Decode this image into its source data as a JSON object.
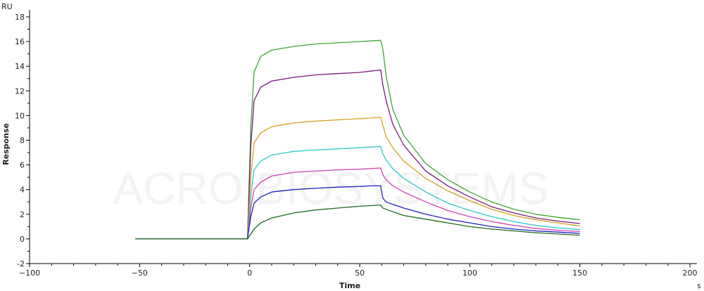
{
  "chart_data": {
    "type": "line",
    "ylabel": "Response",
    "xlabel": "Time",
    "y_unit": "RU",
    "x_unit": "s",
    "xlim": [
      -100,
      200
    ],
    "ylim": [
      -2,
      18
    ],
    "x_ticks": [
      -100,
      -50,
      0,
      50,
      100,
      150,
      200
    ],
    "y_ticks": [
      -2,
      0,
      2,
      4,
      6,
      8,
      10,
      12,
      14,
      16,
      18
    ],
    "grid": false,
    "legend": "none",
    "watermark": "ACRO BIOSYSTEMS",
    "series": [
      {
        "color": "#3aa835",
        "points": [
          [
            -52,
            0
          ],
          [
            -1,
            0
          ],
          [
            0.5,
            9
          ],
          [
            2,
            13.5
          ],
          [
            5,
            14.8
          ],
          [
            10,
            15.3
          ],
          [
            20,
            15.6
          ],
          [
            30,
            15.8
          ],
          [
            40,
            15.9
          ],
          [
            50,
            16.0
          ],
          [
            55,
            16.05
          ],
          [
            59.5,
            16.1
          ],
          [
            60.5,
            15.4
          ],
          [
            62,
            13.2
          ],
          [
            65,
            10.5
          ],
          [
            70,
            8.4
          ],
          [
            80,
            6.1
          ],
          [
            90,
            4.8
          ],
          [
            100,
            3.8
          ],
          [
            110,
            3.0
          ],
          [
            120,
            2.4
          ],
          [
            130,
            2.0
          ],
          [
            140,
            1.75
          ],
          [
            150,
            1.55
          ]
        ]
      },
      {
        "color": "#7a1a7a",
        "points": [
          [
            -52,
            0
          ],
          [
            -1,
            0
          ],
          [
            0.5,
            7.5
          ],
          [
            2,
            11.2
          ],
          [
            5,
            12.3
          ],
          [
            10,
            12.8
          ],
          [
            20,
            13.1
          ],
          [
            30,
            13.3
          ],
          [
            40,
            13.4
          ],
          [
            50,
            13.5
          ],
          [
            55,
            13.6
          ],
          [
            59.5,
            13.7
          ],
          [
            60.5,
            12.5
          ],
          [
            62,
            11.2
          ],
          [
            65,
            9.3
          ],
          [
            70,
            7.6
          ],
          [
            80,
            5.5
          ],
          [
            90,
            4.3
          ],
          [
            100,
            3.4
          ],
          [
            110,
            2.6
          ],
          [
            120,
            2.1
          ],
          [
            130,
            1.7
          ],
          [
            140,
            1.45
          ],
          [
            150,
            1.25
          ]
        ]
      },
      {
        "color": "#d4a020",
        "points": [
          [
            -52,
            0
          ],
          [
            -1,
            0
          ],
          [
            0.5,
            5
          ],
          [
            2,
            7.8
          ],
          [
            5,
            8.6
          ],
          [
            10,
            9.1
          ],
          [
            20,
            9.4
          ],
          [
            30,
            9.55
          ],
          [
            40,
            9.65
          ],
          [
            50,
            9.75
          ],
          [
            55,
            9.8
          ],
          [
            59.5,
            9.85
          ],
          [
            60.5,
            9.2
          ],
          [
            62,
            8.3
          ],
          [
            65,
            7.4
          ],
          [
            70,
            6.3
          ],
          [
            80,
            4.9
          ],
          [
            90,
            3.9
          ],
          [
            100,
            3.1
          ],
          [
            110,
            2.4
          ],
          [
            120,
            1.9
          ],
          [
            130,
            1.55
          ],
          [
            140,
            1.3
          ],
          [
            150,
            1.05
          ]
        ]
      },
      {
        "color": "#30c8c8",
        "points": [
          [
            -52,
            0
          ],
          [
            -1,
            0
          ],
          [
            0.5,
            3.5
          ],
          [
            2,
            5.6
          ],
          [
            5,
            6.3
          ],
          [
            10,
            6.8
          ],
          [
            20,
            7.1
          ],
          [
            30,
            7.2
          ],
          [
            40,
            7.3
          ],
          [
            50,
            7.4
          ],
          [
            55,
            7.45
          ],
          [
            59.5,
            7.5
          ],
          [
            60.5,
            6.9
          ],
          [
            62,
            6.4
          ],
          [
            65,
            5.7
          ],
          [
            70,
            4.9
          ],
          [
            80,
            3.8
          ],
          [
            90,
            2.9
          ],
          [
            100,
            2.3
          ],
          [
            110,
            1.8
          ],
          [
            120,
            1.4
          ],
          [
            130,
            1.1
          ],
          [
            140,
            0.9
          ],
          [
            150,
            0.75
          ]
        ]
      },
      {
        "color": "#d040b0",
        "points": [
          [
            -52,
            0
          ],
          [
            -1,
            0
          ],
          [
            0.5,
            2.5
          ],
          [
            2,
            4.0
          ],
          [
            5,
            4.6
          ],
          [
            10,
            5.1
          ],
          [
            20,
            5.4
          ],
          [
            30,
            5.5
          ],
          [
            40,
            5.6
          ],
          [
            50,
            5.65
          ],
          [
            55,
            5.7
          ],
          [
            59.5,
            5.75
          ],
          [
            60.5,
            5.2
          ],
          [
            62,
            4.8
          ],
          [
            65,
            4.3
          ],
          [
            70,
            3.8
          ],
          [
            80,
            3.0
          ],
          [
            90,
            2.3
          ],
          [
            100,
            1.8
          ],
          [
            110,
            1.4
          ],
          [
            120,
            1.1
          ],
          [
            130,
            0.85
          ],
          [
            140,
            0.7
          ],
          [
            150,
            0.6
          ]
        ]
      },
      {
        "color": "#2020c0",
        "points": [
          [
            -52,
            0
          ],
          [
            -1,
            0
          ],
          [
            0.5,
            1.8
          ],
          [
            2,
            2.9
          ],
          [
            5,
            3.4
          ],
          [
            10,
            3.8
          ],
          [
            20,
            4.0
          ],
          [
            30,
            4.1
          ],
          [
            40,
            4.2
          ],
          [
            50,
            4.25
          ],
          [
            55,
            4.3
          ],
          [
            59.5,
            4.3
          ],
          [
            60.5,
            3.3
          ],
          [
            62,
            3.0
          ],
          [
            65,
            2.8
          ],
          [
            70,
            2.5
          ],
          [
            80,
            2.0
          ],
          [
            90,
            1.6
          ],
          [
            100,
            1.3
          ],
          [
            110,
            1.0
          ],
          [
            120,
            0.8
          ],
          [
            130,
            0.65
          ],
          [
            140,
            0.55
          ],
          [
            150,
            0.45
          ]
        ]
      },
      {
        "color": "#1d6b1d",
        "points": [
          [
            -52,
            0
          ],
          [
            -1,
            0
          ],
          [
            0.5,
            0.4
          ],
          [
            2,
            0.8
          ],
          [
            5,
            1.3
          ],
          [
            10,
            1.7
          ],
          [
            20,
            2.1
          ],
          [
            30,
            2.35
          ],
          [
            40,
            2.5
          ],
          [
            50,
            2.65
          ],
          [
            55,
            2.7
          ],
          [
            59.5,
            2.75
          ],
          [
            60.5,
            2.5
          ],
          [
            62,
            2.4
          ],
          [
            65,
            2.2
          ],
          [
            70,
            1.9
          ],
          [
            80,
            1.6
          ],
          [
            90,
            1.3
          ],
          [
            100,
            1.0
          ],
          [
            110,
            0.8
          ],
          [
            120,
            0.65
          ],
          [
            130,
            0.5
          ],
          [
            140,
            0.4
          ],
          [
            150,
            0.3
          ]
        ]
      }
    ]
  }
}
